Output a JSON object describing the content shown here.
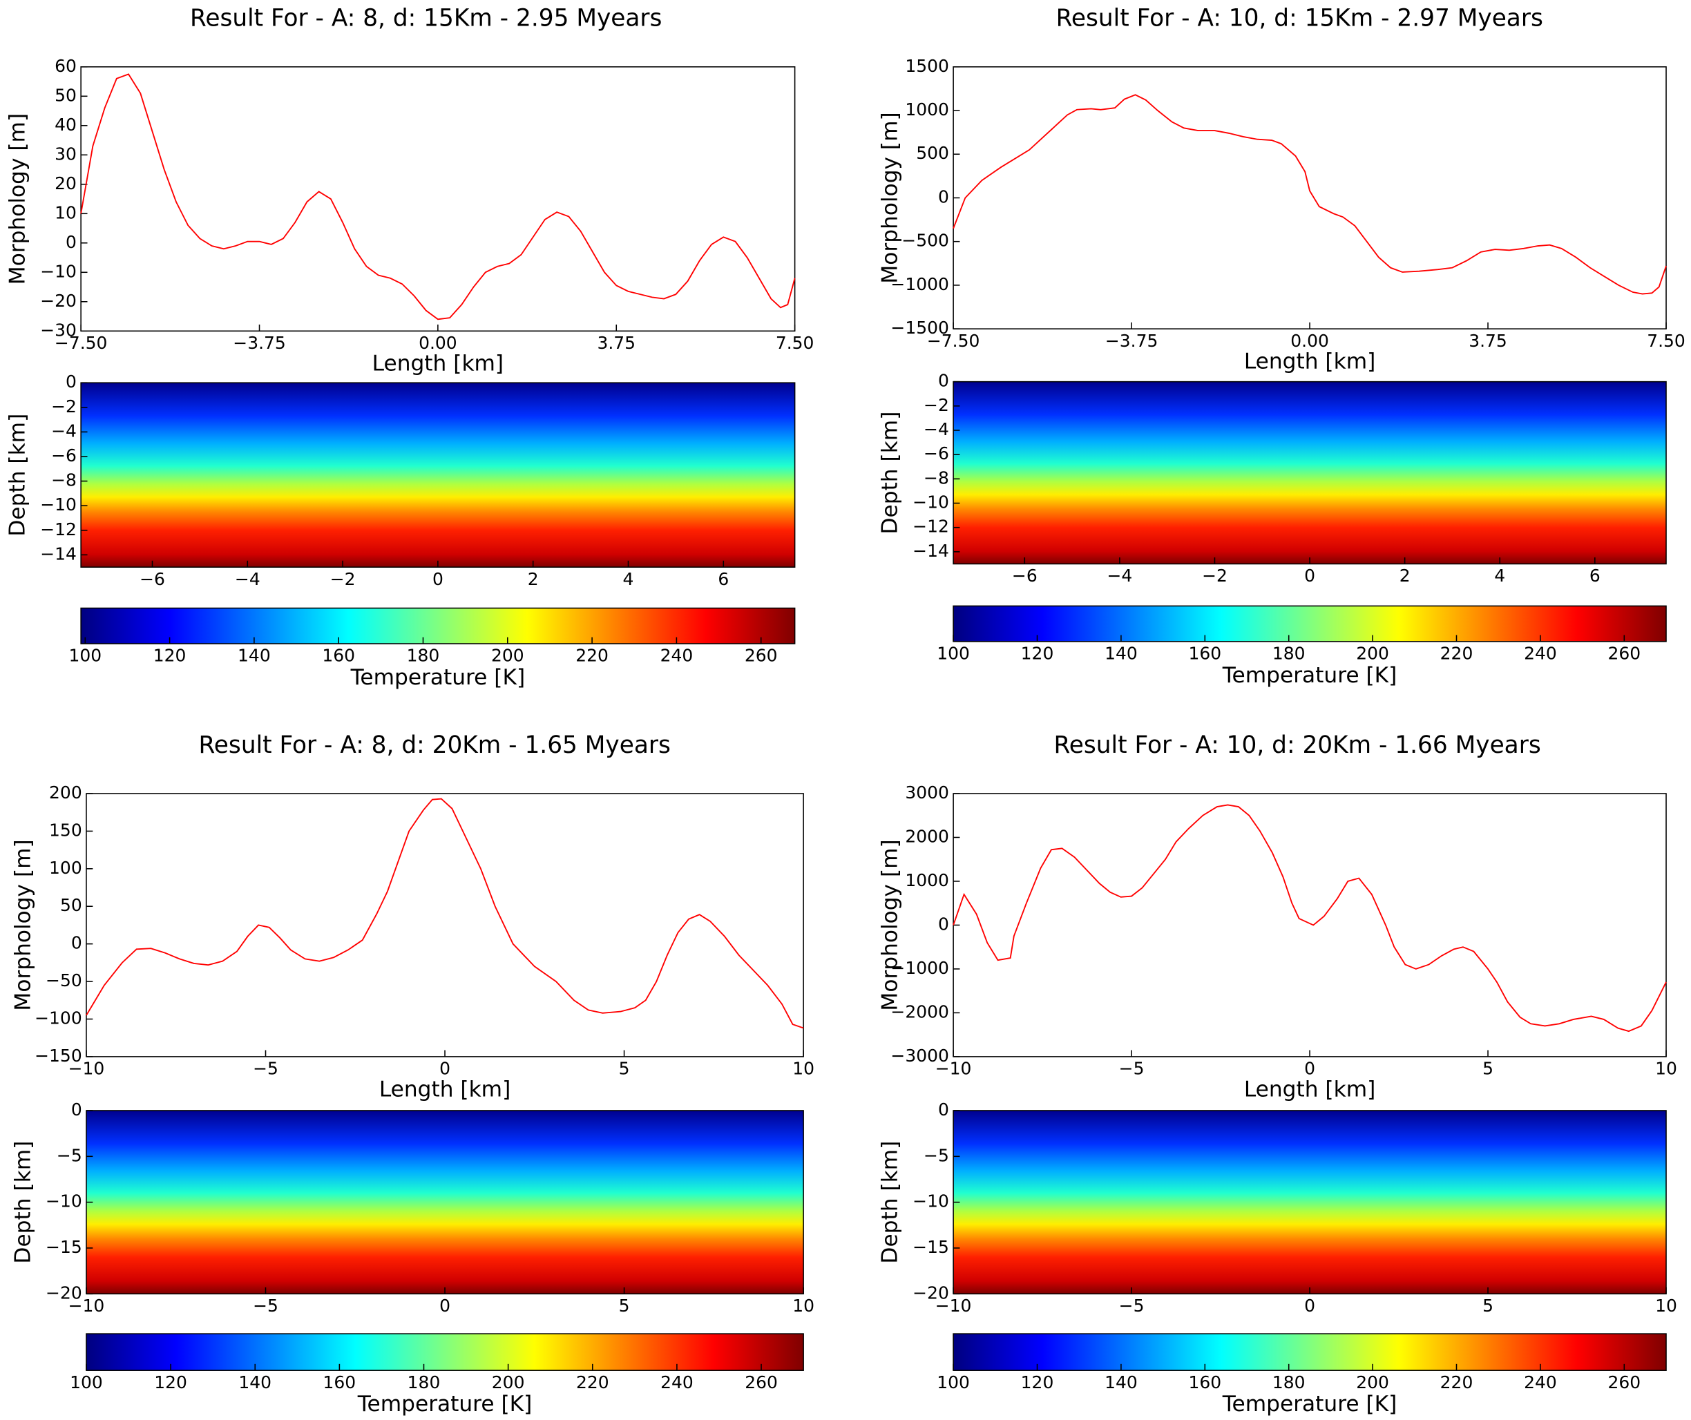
{
  "chart_data": [
    {
      "type": "line",
      "title": "Result For - A: 8, d: 15Km - 2.95 Myears",
      "xlabel": "Length [km]",
      "ylabel": "Morphology [m]",
      "color": "#ff0000",
      "x": [
        -7.5,
        -7.25,
        -7.0,
        -6.75,
        -6.5,
        -6.25,
        -6.0,
        -5.75,
        -5.5,
        -5.25,
        -5.0,
        -4.75,
        -4.5,
        -4.25,
        -4.0,
        -3.75,
        -3.5,
        -3.25,
        -3.0,
        -2.75,
        -2.5,
        -2.25,
        -2.0,
        -1.75,
        -1.5,
        -1.25,
        -1.0,
        -0.75,
        -0.5,
        -0.25,
        0.0,
        0.25,
        0.5,
        0.75,
        1.0,
        1.25,
        1.5,
        1.75,
        2.0,
        2.25,
        2.5,
        2.75,
        3.0,
        3.25,
        3.5,
        3.75,
        4.0,
        4.25,
        4.5,
        4.75,
        5.0,
        5.25,
        5.5,
        5.75,
        6.0,
        6.25,
        6.5,
        6.75,
        7.0,
        7.2,
        7.35,
        7.5
      ],
      "values": [
        10,
        33,
        46,
        56,
        57.5,
        51,
        38,
        25,
        14,
        6,
        1.5,
        -1,
        -2,
        -1,
        0.5,
        0.5,
        -0.5,
        1.5,
        7,
        14,
        17.5,
        15,
        7,
        -2,
        -8,
        -11,
        -12,
        -14,
        -18,
        -23,
        -26,
        -25.5,
        -21,
        -15,
        -10,
        -8,
        -7,
        -4,
        2,
        8,
        10.5,
        9,
        4,
        -3,
        -10,
        -14.5,
        -16.5,
        -17.5,
        -18.5,
        -19,
        -17.5,
        -13,
        -6,
        -0.5,
        2,
        0.5,
        -5,
        -12,
        -19,
        -22,
        -21,
        -12
      ],
      "xlim": [
        -7.5,
        7.5
      ],
      "ylim": [
        -30,
        60
      ],
      "xticks": [
        {
          "value": -7.5,
          "label": "−7.50"
        },
        {
          "value": -3.75,
          "label": "−3.75"
        },
        {
          "value": 0,
          "label": "0.00"
        },
        {
          "value": 3.75,
          "label": "3.75"
        },
        {
          "value": 7.5,
          "label": "7.50"
        }
      ],
      "yticks": [
        60,
        50,
        40,
        30,
        20,
        10,
        0,
        {
          "value": -10,
          "label": "−10"
        },
        {
          "value": -20,
          "label": "−20"
        },
        {
          "value": -30,
          "label": "−30"
        }
      ]
    },
    {
      "type": "heatmap",
      "ylabel": "Depth [km]",
      "xlim": [
        -7.5,
        7.5
      ],
      "ylim": [
        -15,
        0
      ],
      "xticks": [
        {
          "value": -6,
          "label": "−6"
        },
        {
          "value": -4,
          "label": "−4"
        },
        {
          "value": -2,
          "label": "−2"
        },
        0,
        2,
        4,
        6
      ],
      "yticks": [
        0,
        {
          "value": -2,
          "label": "−2"
        },
        {
          "value": -4,
          "label": "−4"
        },
        {
          "value": -6,
          "label": "−6"
        },
        {
          "value": -8,
          "label": "−8"
        },
        {
          "value": -10,
          "label": "−10"
        },
        {
          "value": -12,
          "label": "−12"
        },
        {
          "value": -14,
          "label": "−14"
        }
      ],
      "clabel": "Temperature [K]",
      "clim": [
        99,
        268
      ],
      "cticks": [
        100,
        120,
        140,
        160,
        180,
        200,
        220,
        240,
        260
      ]
    },
    {
      "type": "line",
      "title": "Result For - A: 10, d: 15Km - 2.97 Myears",
      "xlabel": "Length [km]",
      "ylabel": "Morphology [m]",
      "color": "#ff0000",
      "x": [
        -7.5,
        -7.25,
        -6.9,
        -6.5,
        -6.2,
        -5.9,
        -5.6,
        -5.3,
        -5.1,
        -4.9,
        -4.6,
        -4.4,
        -4.1,
        -3.9,
        -3.67,
        -3.45,
        -3.2,
        -2.9,
        -2.65,
        -2.35,
        -2.0,
        -1.7,
        -1.4,
        -1.1,
        -0.8,
        -0.6,
        -0.3,
        -0.1,
        0.0,
        0.2,
        0.5,
        0.7,
        0.95,
        1.2,
        1.45,
        1.7,
        1.95,
        2.3,
        2.7,
        3.0,
        3.3,
        3.6,
        3.9,
        4.2,
        4.5,
        4.8,
        5.05,
        5.3,
        5.6,
        5.9,
        6.2,
        6.5,
        6.8,
        7.0,
        7.2,
        7.35,
        7.5
      ],
      "values": [
        -350,
        0,
        200,
        350,
        450,
        550,
        700,
        850,
        950,
        1010,
        1020,
        1010,
        1030,
        1130,
        1180,
        1120,
        1000,
        870,
        800,
        770,
        770,
        740,
        700,
        670,
        660,
        620,
        480,
        300,
        80,
        -100,
        -180,
        -220,
        -320,
        -500,
        -680,
        -800,
        -850,
        -840,
        -820,
        -800,
        -720,
        -620,
        -590,
        -600,
        -580,
        -550,
        -540,
        -580,
        -680,
        -800,
        -900,
        -1000,
        -1080,
        -1100,
        -1090,
        -1020,
        -780
      ],
      "xlim": [
        -7.5,
        7.5
      ],
      "ylim": [
        -1500,
        1500
      ],
      "xticks": [
        {
          "value": -7.5,
          "label": "−7.50"
        },
        {
          "value": -3.75,
          "label": "−3.75"
        },
        {
          "value": 0,
          "label": "0.00"
        },
        {
          "value": 3.75,
          "label": "3.75"
        },
        {
          "value": 7.5,
          "label": "7.50"
        }
      ],
      "yticks": [
        1500,
        1000,
        500,
        0,
        {
          "value": -500,
          "label": "−500"
        },
        {
          "value": -1000,
          "label": "−1000"
        },
        {
          "value": -1500,
          "label": "−1500"
        }
      ]
    },
    {
      "type": "heatmap",
      "ylabel": "Depth [km]",
      "xlim": [
        -7.5,
        7.5
      ],
      "ylim": [
        -15,
        0
      ],
      "xticks": [
        {
          "value": -6,
          "label": "−6"
        },
        {
          "value": -4,
          "label": "−4"
        },
        {
          "value": -2,
          "label": "−2"
        },
        0,
        2,
        4,
        6
      ],
      "yticks": [
        0,
        {
          "value": -2,
          "label": "−2"
        },
        {
          "value": -4,
          "label": "−4"
        },
        {
          "value": -6,
          "label": "−6"
        },
        {
          "value": -8,
          "label": "−8"
        },
        {
          "value": -10,
          "label": "−10"
        },
        {
          "value": -12,
          "label": "−12"
        },
        {
          "value": -14,
          "label": "−14"
        }
      ],
      "clabel": "Temperature [K]",
      "clim": [
        100,
        270
      ],
      "cticks": [
        100,
        120,
        140,
        160,
        180,
        200,
        220,
        240,
        260
      ]
    },
    {
      "type": "line",
      "title": "Result For - A: 8, d: 20Km - 1.65 Myears",
      "xlabel": "Length [km]",
      "ylabel": "Morphology [m]",
      "color": "#ff0000",
      "x": [
        -10,
        -9.5,
        -9.0,
        -8.6,
        -8.2,
        -7.8,
        -7.4,
        -7.0,
        -6.6,
        -6.2,
        -5.8,
        -5.5,
        -5.2,
        -4.9,
        -4.6,
        -4.3,
        -3.9,
        -3.5,
        -3.1,
        -2.7,
        -2.3,
        -1.9,
        -1.6,
        -1.3,
        -1.0,
        -0.6,
        -0.35,
        -0.1,
        0.2,
        0.5,
        1.0,
        1.4,
        1.9,
        2.5,
        3.1,
        3.6,
        4.0,
        4.4,
        4.9,
        5.3,
        5.6,
        5.9,
        6.2,
        6.5,
        6.8,
        7.1,
        7.4,
        7.8,
        8.2,
        8.6,
        9.0,
        9.4,
        9.7,
        10
      ],
      "values": [
        -95,
        -55,
        -25,
        -7,
        -6,
        -12,
        -20,
        -26,
        -28,
        -23,
        -10,
        10,
        25,
        22,
        8,
        -8,
        -20,
        -23,
        -18,
        -8,
        5,
        40,
        70,
        110,
        150,
        178,
        192,
        193,
        180,
        150,
        100,
        50,
        0,
        -30,
        -50,
        -75,
        -88,
        -92,
        -90,
        -85,
        -75,
        -50,
        -15,
        15,
        33,
        39,
        30,
        10,
        -15,
        -35,
        -55,
        -80,
        -107,
        -112
      ],
      "xlim": [
        -10,
        10
      ],
      "ylim": [
        -150,
        200
      ],
      "xticks": [
        {
          "value": -10,
          "label": "−10"
        },
        {
          "value": -5,
          "label": "−5"
        },
        0,
        5,
        10
      ],
      "yticks": [
        200,
        150,
        100,
        50,
        0,
        {
          "value": -50,
          "label": "−50"
        },
        {
          "value": -100,
          "label": "−100"
        },
        {
          "value": -150,
          "label": "−150"
        }
      ]
    },
    {
      "type": "heatmap",
      "ylabel": "Depth [km]",
      "xlim": [
        -10,
        10
      ],
      "ylim": [
        -20,
        0
      ],
      "xticks": [
        {
          "value": -10,
          "label": "−10"
        },
        {
          "value": -5,
          "label": "−5"
        },
        0,
        5,
        10
      ],
      "yticks": [
        0,
        {
          "value": -5,
          "label": "−5"
        },
        {
          "value": -10,
          "label": "−10"
        },
        {
          "value": -15,
          "label": "−15"
        },
        {
          "value": -20,
          "label": "−20"
        }
      ],
      "clabel": "Temperature [K]",
      "clim": [
        100,
        270
      ],
      "cticks": [
        100,
        120,
        140,
        160,
        180,
        200,
        220,
        240,
        260
      ]
    },
    {
      "type": "line",
      "title": "Result For - A: 10, d: 20Km - 1.66 Myears",
      "xlabel": "Length [km]",
      "ylabel": "Morphology [m]",
      "color": "#ff0000",
      "x": [
        -10,
        -9.7,
        -9.35,
        -9.05,
        -8.75,
        -8.4,
        -8.3,
        -7.95,
        -7.55,
        -7.25,
        -6.95,
        -6.6,
        -6.25,
        -5.9,
        -5.6,
        -5.3,
        -5.0,
        -4.7,
        -4.4,
        -4.05,
        -3.75,
        -3.4,
        -3.0,
        -2.6,
        -2.3,
        -2.0,
        -1.7,
        -1.4,
        -1.05,
        -0.75,
        -0.5,
        -0.3,
        0.1,
        0.4,
        0.77,
        1.07,
        1.38,
        1.74,
        2.13,
        2.37,
        2.68,
        2.98,
        3.34,
        3.7,
        4.04,
        4.3,
        4.6,
        5.0,
        5.25,
        5.55,
        5.9,
        6.2,
        6.6,
        7.0,
        7.4,
        7.9,
        8.25,
        8.65,
        8.95,
        9.3,
        9.6,
        10
      ],
      "values": [
        0,
        700,
        250,
        -400,
        -800,
        -750,
        -250,
        500,
        1300,
        1720,
        1750,
        1550,
        1250,
        950,
        750,
        640,
        660,
        850,
        1150,
        1500,
        1900,
        2200,
        2500,
        2700,
        2740,
        2700,
        2500,
        2150,
        1650,
        1100,
        500,
        150,
        0,
        200,
        600,
        1000,
        1070,
        700,
        0,
        -500,
        -900,
        -1000,
        -900,
        -700,
        -550,
        -500,
        -600,
        -1000,
        -1300,
        -1750,
        -2100,
        -2250,
        -2300,
        -2250,
        -2150,
        -2080,
        -2150,
        -2350,
        -2420,
        -2300,
        -1950,
        -1300
      ],
      "xlim": [
        -10,
        10
      ],
      "ylim": [
        -3000,
        3000
      ],
      "xticks": [
        {
          "value": -10,
          "label": "−10"
        },
        {
          "value": -5,
          "label": "−5"
        },
        0,
        5,
        10
      ],
      "yticks": [
        3000,
        2000,
        1000,
        0,
        {
          "value": -1000,
          "label": "−1000"
        },
        {
          "value": -2000,
          "label": "−2000"
        },
        {
          "value": -3000,
          "label": "−3000"
        }
      ]
    },
    {
      "type": "heatmap",
      "ylabel": "Depth [km]",
      "xlim": [
        -10,
        10
      ],
      "ylim": [
        -20,
        0
      ],
      "xticks": [
        {
          "value": -10,
          "label": "−10"
        },
        {
          "value": -5,
          "label": "−5"
        },
        0,
        5,
        10
      ],
      "yticks": [
        0,
        {
          "value": -5,
          "label": "−5"
        },
        {
          "value": -10,
          "label": "−10"
        },
        {
          "value": -15,
          "label": "−15"
        },
        {
          "value": -20,
          "label": "−20"
        }
      ],
      "clabel": "Temperature [K]",
      "clim": [
        100,
        270
      ],
      "cticks": [
        100,
        120,
        140,
        160,
        180,
        200,
        220,
        240,
        260
      ]
    }
  ]
}
